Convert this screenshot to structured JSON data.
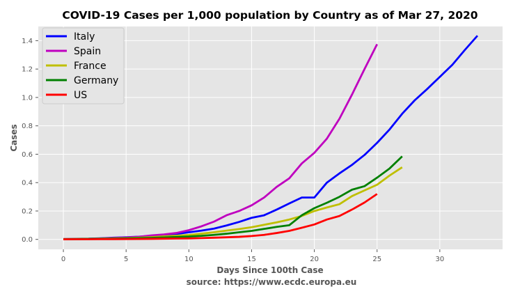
{
  "chart_data": {
    "type": "line",
    "title": "COVID-19 Cases per 1,000 population by Country as of Mar 27, 2020",
    "xlabel": "Days Since 100th Case",
    "xlabel2": "source: https://www.ecdc.europa.eu",
    "ylabel": "Cases",
    "xlim": [
      -2,
      35
    ],
    "ylim": [
      -0.07,
      1.5
    ],
    "xticks": [
      0,
      5,
      10,
      15,
      20,
      25,
      30
    ],
    "xtick_labels": [
      "0",
      "5",
      "10",
      "15",
      "20",
      "25",
      "30"
    ],
    "yticks": [
      0.0,
      0.2,
      0.4,
      0.6,
      0.8,
      1.0,
      1.2,
      1.4
    ],
    "ytick_labels": [
      "0.0",
      "0.2",
      "0.4",
      "0.6",
      "0.8",
      "1.0",
      "1.2",
      "1.4"
    ],
    "grid": true,
    "legend_position": "top-left",
    "background_color": "#e5e5e5",
    "series": [
      {
        "name": "Italy",
        "color": "#0000ff",
        "x": [
          0,
          1,
          2,
          3,
          4,
          5,
          6,
          7,
          8,
          9,
          10,
          11,
          12,
          13,
          14,
          15,
          16,
          17,
          18,
          19,
          20,
          21,
          22,
          23,
          24,
          25,
          26,
          27,
          28,
          29,
          30,
          31,
          32,
          33
        ],
        "y": [
          0.002,
          0.004,
          0.005,
          0.008,
          0.012,
          0.015,
          0.019,
          0.025,
          0.03,
          0.038,
          0.05,
          0.062,
          0.076,
          0.098,
          0.123,
          0.152,
          0.17,
          0.21,
          0.253,
          0.295,
          0.295,
          0.4,
          0.465,
          0.525,
          0.595,
          0.68,
          0.775,
          0.885,
          0.98,
          1.06,
          1.145,
          1.23,
          1.335,
          1.435
        ]
      },
      {
        "name": "Spain",
        "color": "#bf00bf",
        "x": [
          0,
          1,
          2,
          3,
          4,
          5,
          6,
          7,
          8,
          9,
          10,
          11,
          12,
          13,
          14,
          15,
          16,
          17,
          18,
          19,
          20,
          21,
          22,
          23,
          24,
          25
        ],
        "y": [
          0.002,
          0.003,
          0.004,
          0.007,
          0.01,
          0.013,
          0.018,
          0.028,
          0.035,
          0.045,
          0.065,
          0.092,
          0.125,
          0.17,
          0.2,
          0.24,
          0.295,
          0.37,
          0.43,
          0.535,
          0.61,
          0.71,
          0.85,
          1.02,
          1.2,
          1.375
        ]
      },
      {
        "name": "France",
        "color": "#bfbf00",
        "x": [
          0,
          1,
          2,
          3,
          4,
          5,
          6,
          7,
          8,
          9,
          10,
          11,
          12,
          13,
          14,
          15,
          16,
          17,
          18,
          19,
          20,
          21,
          22,
          23,
          24,
          25,
          26,
          27
        ],
        "y": [
          0.002,
          0.003,
          0.004,
          0.005,
          0.007,
          0.009,
          0.012,
          0.016,
          0.021,
          0.026,
          0.031,
          0.04,
          0.05,
          0.062,
          0.073,
          0.086,
          0.103,
          0.12,
          0.14,
          0.165,
          0.2,
          0.225,
          0.248,
          0.305,
          0.345,
          0.385,
          0.45,
          0.508
        ]
      },
      {
        "name": "Germany",
        "color": "#008000",
        "x": [
          0,
          1,
          2,
          3,
          4,
          5,
          6,
          7,
          8,
          9,
          10,
          11,
          12,
          13,
          14,
          15,
          16,
          17,
          18,
          19,
          20,
          21,
          22,
          23,
          24,
          25,
          26,
          27
        ],
        "y": [
          0.001,
          0.002,
          0.003,
          0.004,
          0.005,
          0.007,
          0.009,
          0.011,
          0.014,
          0.017,
          0.02,
          0.025,
          0.032,
          0.04,
          0.05,
          0.06,
          0.074,
          0.088,
          0.1,
          0.17,
          0.22,
          0.258,
          0.3,
          0.35,
          0.375,
          0.435,
          0.5,
          0.585
        ]
      },
      {
        "name": "US",
        "color": "#ff0000",
        "x": [
          0,
          1,
          2,
          3,
          4,
          5,
          6,
          7,
          8,
          9,
          10,
          11,
          12,
          13,
          14,
          15,
          16,
          17,
          18,
          19,
          20,
          21,
          22,
          23,
          24,
          25
        ],
        "y": [
          0.0005,
          0.001,
          0.0013,
          0.0017,
          0.002,
          0.0025,
          0.003,
          0.004,
          0.005,
          0.006,
          0.007,
          0.009,
          0.012,
          0.015,
          0.018,
          0.024,
          0.032,
          0.045,
          0.06,
          0.082,
          0.105,
          0.14,
          0.165,
          0.21,
          0.26,
          0.32
        ]
      }
    ]
  }
}
